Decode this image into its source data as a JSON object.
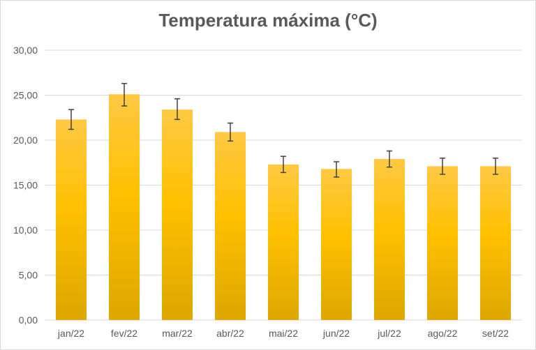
{
  "chart_data": {
    "type": "bar",
    "title": "Temperatura máxima (°C)",
    "xlabel": "",
    "ylabel": "",
    "categories": [
      "jan/22",
      "fev/22",
      "mar/22",
      "abr/22",
      "mai/22",
      "jun/22",
      "jul/22",
      "ago/22",
      "set/22"
    ],
    "values": [
      22.3,
      25.1,
      23.4,
      20.9,
      17.3,
      16.8,
      17.9,
      17.1,
      17.1
    ],
    "error_low": [
      21.2,
      23.8,
      22.3,
      19.9,
      16.4,
      15.9,
      17.0,
      16.2,
      16.2
    ],
    "error_high": [
      23.4,
      26.3,
      24.6,
      21.9,
      18.2,
      17.6,
      18.8,
      18.0,
      18.0
    ],
    "ylim": [
      0,
      30
    ],
    "yticks": [
      "0,00",
      "5,00",
      "10,00",
      "15,00",
      "20,00",
      "25,00",
      "30,00"
    ],
    "ytick_values": [
      0,
      5,
      10,
      15,
      20,
      25,
      30
    ],
    "grid": true,
    "legend": "none",
    "bar_color_top": "#ffc944",
    "bar_color_mid": "#ffc000",
    "bar_color_bottom": "#dca700",
    "error_bar_color": "#404040",
    "grid_color": "#d9d9d9"
  }
}
